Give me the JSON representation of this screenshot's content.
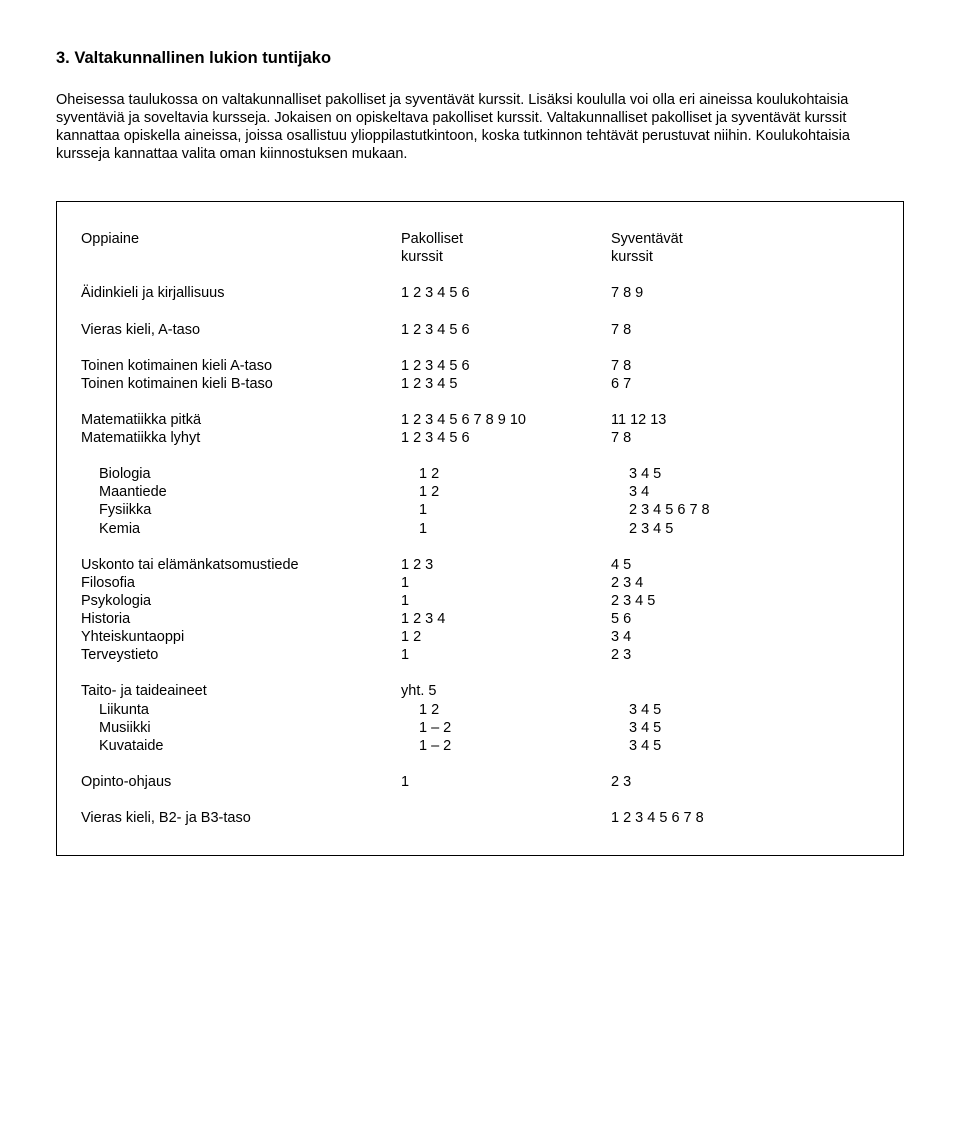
{
  "heading": "3. Valtakunnallinen lukion tuntijako",
  "intro": "Oheisessa taulukossa on valtakunnalliset pakolliset ja syventävät kurssit. Lisäksi koululla voi olla eri aineissa koulukohtaisia syventäviä ja soveltavia kursseja. Jokaisen on opiskeltava pakolliset kurssit. Valtakunnalliset pakolliset ja syventävät kurssit kannattaa opiskella aineissa, joissa osallistuu ylioppilastutkintoon, koska tutkinnon tehtävät perustuvat niihin. Koulukohtaisia kursseja kannattaa valita oman kiinnostuksen mukaan.",
  "header": {
    "subject": "Oppiaine",
    "pak1": "Pakolliset",
    "pak2": "kurssit",
    "syv1": "Syventävät",
    "syv2": "kurssit"
  },
  "rows": {
    "ai": {
      "subject": "Äidinkieli ja kirjallisuus",
      "pak": "1 2 3 4 5 6",
      "syv": "7 8 9"
    },
    "vka": {
      "subject": "Vieras kieli, A-taso",
      "pak": "1 2 3 4 5 6",
      "syv": "7 8"
    },
    "tka": {
      "subject": "Toinen kotimainen kieli A-taso",
      "pak": "1 2 3 4 5 6",
      "syv": "7 8"
    },
    "tkb": {
      "subject": "Toinen kotimainen kieli B-taso",
      "pak": "1 2 3 4 5",
      "syv": "6 7"
    },
    "mp": {
      "subject": "Matematiikka pitkä",
      "pak": "1 2 3 4 5 6 7 8 9 10",
      "syv": "11 12 13"
    },
    "ml": {
      "subject": "Matematiikka lyhyt",
      "pak": "1 2 3 4 5 6",
      "syv": "7 8"
    },
    "bio": {
      "subject": "Biologia",
      "pak": "1 2",
      "syv": "3 4 5"
    },
    "maa": {
      "subject": "Maantiede",
      "pak": "1 2",
      "syv": "3 4"
    },
    "fys": {
      "subject": "Fysiikka",
      "pak": "1",
      "syv": "2 3 4 5 6 7 8"
    },
    "kem": {
      "subject": "Kemia",
      "pak": "1",
      "syv": "2 3 4 5"
    },
    "usk": {
      "subject": "Uskonto tai elämänkatsomustiede",
      "pak": "1 2 3",
      "syv": "4 5"
    },
    "fil": {
      "subject": "Filosofia",
      "pak": "1",
      "syv": "2 3 4"
    },
    "psy": {
      "subject": "Psykologia",
      "pak": "1",
      "syv": "2 3 4 5"
    },
    "his": {
      "subject": "Historia",
      "pak": "1 2 3 4",
      "syv": "5 6"
    },
    "yht": {
      "subject": "Yhteiskuntaoppi",
      "pak": "1 2",
      "syv": "3 4"
    },
    "ter": {
      "subject": "Terveystieto",
      "pak": "1",
      "syv": "2 3"
    },
    "tt": {
      "subject": "Taito- ja taideaineet",
      "pak": " yht. 5",
      "syv": ""
    },
    "lii": {
      "subject": "Liikunta",
      "pak": "1 2",
      "syv": "3 4 5"
    },
    "mus": {
      "subject": "Musiikki",
      "pak": "1 – 2",
      "syv": "3 4 5"
    },
    "kuv": {
      "subject": "Kuvataide",
      "pak": "1 – 2",
      "syv": "3 4 5"
    },
    "opo": {
      "subject": "Opinto-ohjaus",
      "pak": "1",
      "syv": "2 3"
    },
    "vkb": {
      "subject": "Vieras kieli, B2- ja B3-taso",
      "pak": "",
      "syv": "1 2 3 4 5 6 7 8"
    }
  }
}
